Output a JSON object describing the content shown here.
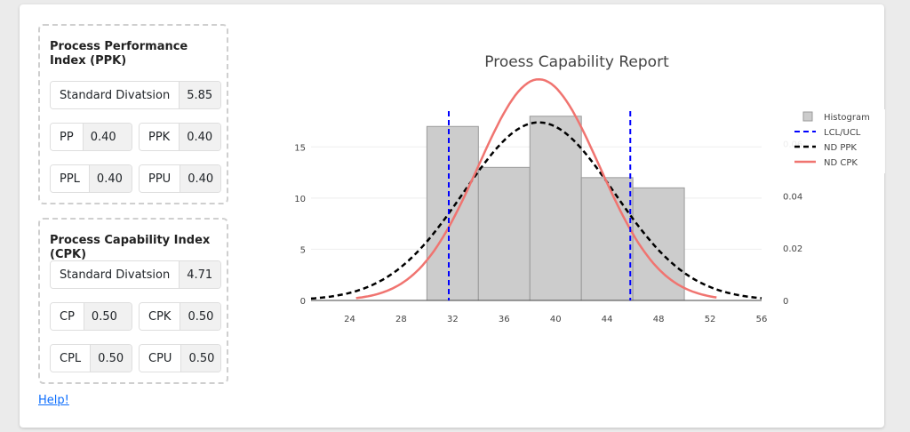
{
  "ppk_panel": {
    "title": "Process Performance Index (PPK)",
    "std_label": "Standard Divatsion",
    "std_value": "5.85",
    "pp_label": "PP",
    "pp_value": "0.40",
    "ppk_label": "PPK",
    "ppk_value": "0.40",
    "ppl_label": "PPL",
    "ppl_value": "0.40",
    "ppu_label": "PPU",
    "ppu_value": "0.40"
  },
  "cpk_panel": {
    "title": "Process Capability Index (CPK)",
    "std_label": "Standard Divatsion",
    "std_value": "4.71",
    "cp_label": "CP",
    "cp_value": "0.50",
    "cpk_label": "CPK",
    "cpk_value": "0.50",
    "cpl_label": "CPL",
    "cpl_value": "0.50",
    "cpu_label": "CPU",
    "cpu_value": "0.50"
  },
  "help_link": "Help!",
  "chart_data": {
    "type": "bar",
    "title": "Proess Capability Report",
    "xlim": [
      21,
      56
    ],
    "ylim": [
      0,
      18.5
    ],
    "y2lim": [
      0,
      0.0725
    ],
    "grid": true,
    "legend_position": "top-right",
    "x_ticks": [
      24,
      28,
      32,
      36,
      40,
      44,
      48,
      52,
      56
    ],
    "y_ticks": [
      0,
      5,
      10,
      15
    ],
    "y2_ticks": [
      0,
      0.02,
      0.04,
      0.06
    ],
    "y2_tick_labels": [
      "0",
      "0.02",
      "0.04",
      "0.06"
    ],
    "histogram": {
      "name": "Histogram",
      "bins": [
        {
          "start": 30,
          "end": 34,
          "count": 17
        },
        {
          "start": 34,
          "end": 38,
          "count": 13
        },
        {
          "start": 38,
          "end": 42,
          "count": 18
        },
        {
          "start": 42,
          "end": 46,
          "count": 12
        },
        {
          "start": 46,
          "end": 50,
          "count": 11
        }
      ],
      "color": "#cccccc"
    },
    "limits": {
      "name": "LCL/UCL",
      "lcl": 31.7,
      "ucl": 45.8,
      "color": "#0000ff"
    },
    "nd_ppk": {
      "name": "ND PPK",
      "mean": 38.7,
      "std": 5.85,
      "x_range": [
        21,
        56
      ],
      "color": "#000000"
    },
    "nd_cpk": {
      "name": "ND CPK",
      "mean": 38.7,
      "std": 4.71,
      "x_range": [
        24.5,
        52.5
      ],
      "color": "#f07470"
    }
  }
}
